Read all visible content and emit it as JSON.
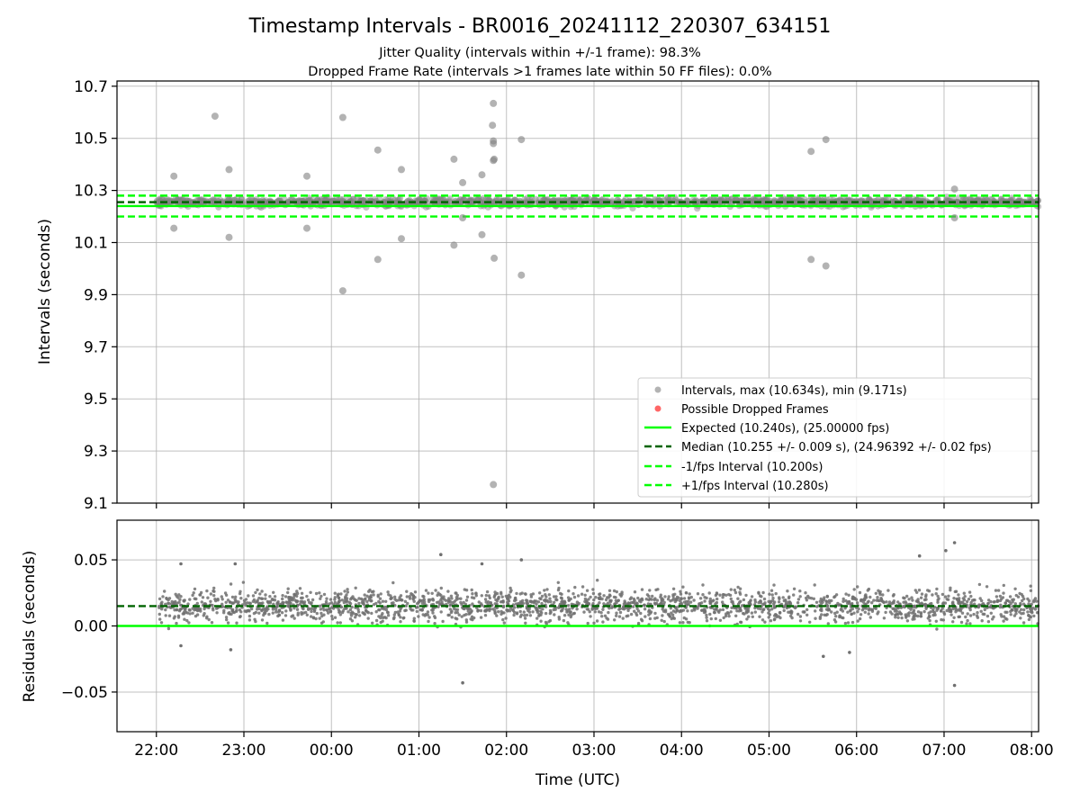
{
  "figure": {
    "title": "Timestamp Intervals - BR0016_20241112_220307_634151",
    "subtitle_1": "Jitter Quality (intervals within +/-1 frame): 98.3%",
    "subtitle_2": "Dropped Frame Rate (intervals >1 frames late within 50 FF files): 0.0%"
  },
  "chart_data": [
    {
      "type": "scatter",
      "panel": "top",
      "title": "Timestamp Intervals - BR0016_20241112_220307_634151",
      "xlabel": "",
      "ylabel": "Intervals (seconds)",
      "x_unit": "hours since 22:00 UTC",
      "xlim": [
        -0.45,
        10.08
      ],
      "ylim": [
        9.1,
        10.72
      ],
      "yticks": [
        "10.7",
        "10.5",
        "10.3",
        "10.1",
        "9.9",
        "9.7",
        "9.5",
        "9.3",
        "9.1"
      ],
      "ytick_values": [
        10.7,
        10.5,
        10.3,
        10.1,
        9.9,
        9.7,
        9.5,
        9.3,
        9.1
      ],
      "grid": true,
      "legend_position": "lower-right",
      "lines": [
        {
          "name": "Expected (10.240s), (25.00000 fps)",
          "y": 10.24,
          "color": "#00ff00",
          "style": "solid"
        },
        {
          "name": "Median (10.255 +/- 0.009 s), (24.96392 +/- 0.02 fps)",
          "y": 10.255,
          "color": "#006400",
          "style": "dashed"
        },
        {
          "name": "-1/fps Interval (10.200s)",
          "y": 10.2,
          "color": "#00ff00",
          "style": "dashed"
        },
        {
          "name": "+1/fps Interval (10.280s)",
          "y": 10.28,
          "color": "#00ff00",
          "style": "dashed"
        }
      ],
      "series": [
        {
          "name": "Intervals, max (10.634s), min (9.171s)",
          "color": "#808080",
          "band": {
            "x_start": 0.0,
            "x_end": 10.08,
            "center": 10.255,
            "spread": 0.012
          },
          "outliers": [
            {
              "x": 0.2,
              "y": 10.355
            },
            {
              "x": 0.2,
              "y": 10.155
            },
            {
              "x": 0.67,
              "y": 10.585
            },
            {
              "x": 0.83,
              "y": 10.38
            },
            {
              "x": 0.83,
              "y": 10.12
            },
            {
              "x": 1.72,
              "y": 10.355
            },
            {
              "x": 1.72,
              "y": 10.155
            },
            {
              "x": 2.13,
              "y": 10.58
            },
            {
              "x": 2.13,
              "y": 9.915
            },
            {
              "x": 2.53,
              "y": 10.455
            },
            {
              "x": 2.53,
              "y": 10.035
            },
            {
              "x": 2.8,
              "y": 10.38
            },
            {
              "x": 2.8,
              "y": 10.115
            },
            {
              "x": 3.4,
              "y": 10.42
            },
            {
              "x": 3.4,
              "y": 10.09
            },
            {
              "x": 3.5,
              "y": 10.33
            },
            {
              "x": 3.5,
              "y": 10.195
            },
            {
              "x": 3.72,
              "y": 10.36
            },
            {
              "x": 3.72,
              "y": 10.13
            },
            {
              "x": 3.85,
              "y": 10.634
            },
            {
              "x": 3.84,
              "y": 10.55
            },
            {
              "x": 3.85,
              "y": 10.49
            },
            {
              "x": 3.85,
              "y": 10.48
            },
            {
              "x": 3.86,
              "y": 10.42
            },
            {
              "x": 3.85,
              "y": 10.415
            },
            {
              "x": 3.86,
              "y": 10.04
            },
            {
              "x": 3.85,
              "y": 9.171
            },
            {
              "x": 4.17,
              "y": 10.495
            },
            {
              "x": 4.17,
              "y": 9.975
            },
            {
              "x": 7.48,
              "y": 10.45
            },
            {
              "x": 7.48,
              "y": 10.035
            },
            {
              "x": 7.65,
              "y": 10.495
            },
            {
              "x": 7.65,
              "y": 10.01
            },
            {
              "x": 9.12,
              "y": 10.305
            },
            {
              "x": 9.12,
              "y": 10.195
            }
          ]
        },
        {
          "name": "Possible Dropped Frames",
          "color": "#ff0000",
          "points": []
        }
      ]
    },
    {
      "type": "scatter",
      "panel": "bottom",
      "xlabel": "Time (UTC)",
      "ylabel": "Residuals (seconds)",
      "x_unit": "hours since 22:00 UTC",
      "xlim": [
        -0.45,
        10.08
      ],
      "ylim": [
        -0.08,
        0.08
      ],
      "xticks": [
        "22:00",
        "23:00",
        "00:00",
        "01:00",
        "02:00",
        "03:00",
        "04:00",
        "05:00",
        "06:00",
        "07:00",
        "08:00"
      ],
      "xtick_values": [
        0,
        1,
        2,
        3,
        4,
        5,
        6,
        7,
        8,
        9,
        10
      ],
      "yticks": [
        "0.05",
        "0.00",
        "−0.05"
      ],
      "ytick_values": [
        0.05,
        0.0,
        -0.05
      ],
      "grid": true,
      "lines": [
        {
          "y": 0.0,
          "color": "#00ff00",
          "style": "solid"
        },
        {
          "y": 0.015,
          "color": "#006400",
          "style": "dashed"
        }
      ],
      "series": [
        {
          "name": "Residuals",
          "color": "#808080",
          "band": {
            "x_start": 0.03,
            "x_end": 10.08,
            "center": 0.0155,
            "spread": 0.009
          },
          "outliers": [
            {
              "x": 3.5,
              "y": -0.043
            },
            {
              "x": 9.12,
              "y": -0.045
            },
            {
              "x": 9.12,
              "y": 0.063
            },
            {
              "x": 3.25,
              "y": 0.054
            },
            {
              "x": 4.17,
              "y": 0.05
            },
            {
              "x": 8.72,
              "y": 0.053
            },
            {
              "x": 7.62,
              "y": -0.023
            },
            {
              "x": 0.28,
              "y": -0.015
            },
            {
              "x": 0.85,
              "y": -0.018
            },
            {
              "x": 0.9,
              "y": 0.047
            },
            {
              "x": 0.28,
              "y": 0.047
            },
            {
              "x": 3.72,
              "y": 0.047
            },
            {
              "x": 9.02,
              "y": 0.057
            },
            {
              "x": 7.92,
              "y": -0.02
            }
          ]
        }
      ]
    }
  ]
}
